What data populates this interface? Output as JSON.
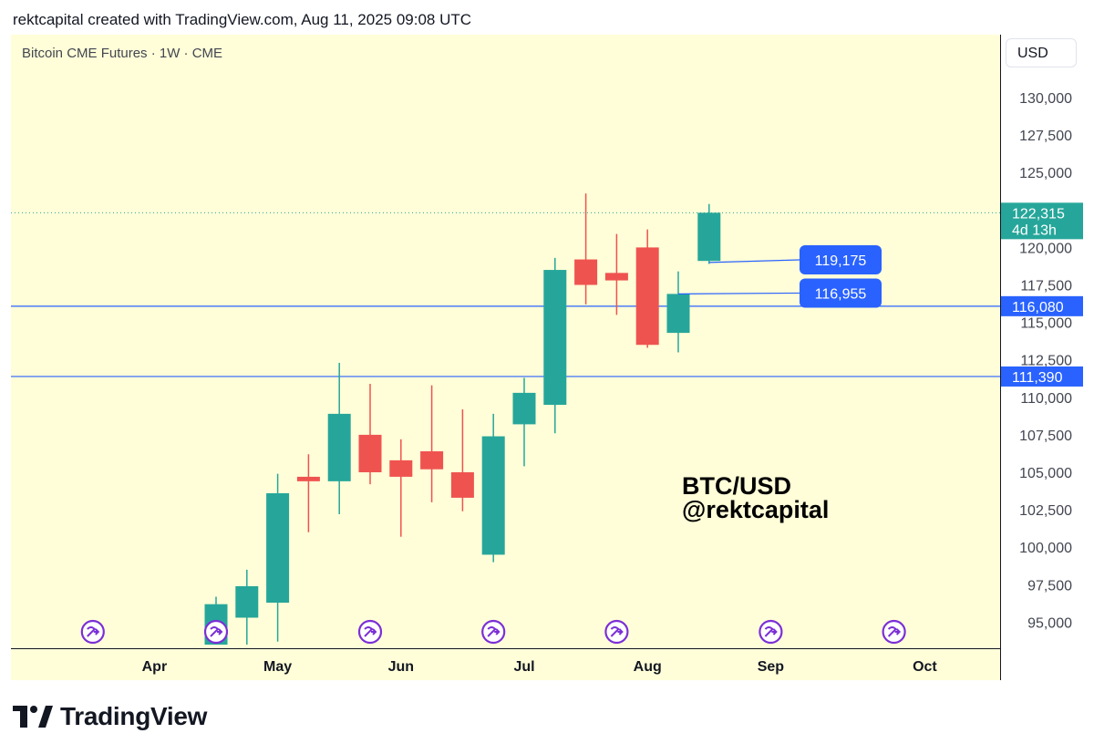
{
  "header": {
    "text": "rektcapital created with TradingView.com, Aug 11, 2025 09:08 UTC"
  },
  "symbol": {
    "text": "Bitcoin CME Futures · 1W · CME"
  },
  "currency": {
    "label": "USD"
  },
  "footer": {
    "brand": "TradingView"
  },
  "colors": {
    "up": "#26a69a",
    "down": "#ef5350",
    "line": "#2962ff",
    "tag": "#2962ff",
    "event": "#7b2fd6"
  },
  "chart_data": {
    "type": "candlestick",
    "timeframe": "1W",
    "ylim": [
      93500,
      134000
    ],
    "y_ticks": [
      "130,000",
      "127,500",
      "125,000",
      "120,000",
      "117,500",
      "115,000",
      "112,500",
      "110,000",
      "107,500",
      "105,000",
      "102,500",
      "100,000",
      "97,500",
      "95,000"
    ],
    "y_tick_values": [
      130000,
      127500,
      125000,
      120000,
      117500,
      115000,
      112500,
      110000,
      107500,
      105000,
      102500,
      100000,
      97500,
      95000
    ],
    "x_ticks": [
      {
        "label": "Apr",
        "index": -2
      },
      {
        "label": "May",
        "index": 2
      },
      {
        "label": "Jun",
        "index": 6
      },
      {
        "label": "Jul",
        "index": 10
      },
      {
        "label": "Aug",
        "index": 14
      },
      {
        "label": "Sep",
        "index": 18
      },
      {
        "label": "Oct",
        "index": 23
      }
    ],
    "candles": [
      {
        "date": "2025-04-14",
        "open": 93500,
        "high": 96700,
        "low": 93500,
        "close": 96200
      },
      {
        "date": "2025-04-21",
        "open": 95300,
        "high": 98500,
        "low": 93500,
        "close": 97400
      },
      {
        "date": "2025-04-28",
        "open": 96300,
        "high": 104900,
        "low": 93700,
        "close": 103600
      },
      {
        "date": "2025-05-05",
        "open": 104700,
        "high": 106200,
        "low": 101000,
        "close": 104400
      },
      {
        "date": "2025-05-12",
        "open": 104400,
        "high": 112300,
        "low": 102200,
        "close": 108900
      },
      {
        "date": "2025-05-19",
        "open": 107500,
        "high": 110900,
        "low": 104200,
        "close": 105000
      },
      {
        "date": "2025-05-26",
        "open": 105800,
        "high": 107200,
        "low": 100700,
        "close": 104700
      },
      {
        "date": "2025-06-02",
        "open": 106400,
        "high": 110800,
        "low": 103000,
        "close": 105200
      },
      {
        "date": "2025-06-09",
        "open": 105000,
        "high": 109200,
        "low": 102400,
        "close": 103300
      },
      {
        "date": "2025-06-16",
        "open": 99500,
        "high": 108900,
        "low": 99000,
        "close": 107400
      },
      {
        "date": "2025-06-23",
        "open": 108200,
        "high": 111300,
        "low": 105400,
        "close": 110300
      },
      {
        "date": "2025-06-30",
        "open": 109500,
        "high": 119300,
        "low": 107600,
        "close": 118500
      },
      {
        "date": "2025-07-07",
        "open": 119200,
        "high": 123600,
        "low": 116200,
        "close": 117500
      },
      {
        "date": "2025-07-14",
        "open": 118300,
        "high": 120900,
        "low": 115500,
        "close": 117800
      },
      {
        "date": "2025-07-21",
        "open": 120000,
        "high": 121200,
        "low": 113300,
        "close": 113500
      },
      {
        "date": "2025-07-28",
        "open": 114300,
        "high": 118400,
        "low": 113000,
        "close": 116900
      },
      {
        "date": "2025-08-04",
        "open": 119100,
        "high": 122900,
        "low": 118900,
        "close": 122315
      }
    ],
    "horizontal_levels": [
      {
        "value": 116080,
        "label": "116,080"
      },
      {
        "value": 111390,
        "label": "111,390"
      }
    ],
    "last_price": {
      "value": 122315,
      "label": "122,315",
      "countdown": "4d 13h"
    },
    "callouts": [
      {
        "label": "119,175",
        "value": 119175,
        "from_index": 16,
        "from_value": 119000
      },
      {
        "label": "116,955",
        "value": 116955,
        "from_index": 15,
        "from_value": 116900
      }
    ],
    "event_markers_at_index": [
      -4,
      0,
      5,
      9,
      13,
      18,
      22
    ],
    "annotation": {
      "line1": "BTC/USD",
      "line2": "@rektcapital"
    }
  }
}
